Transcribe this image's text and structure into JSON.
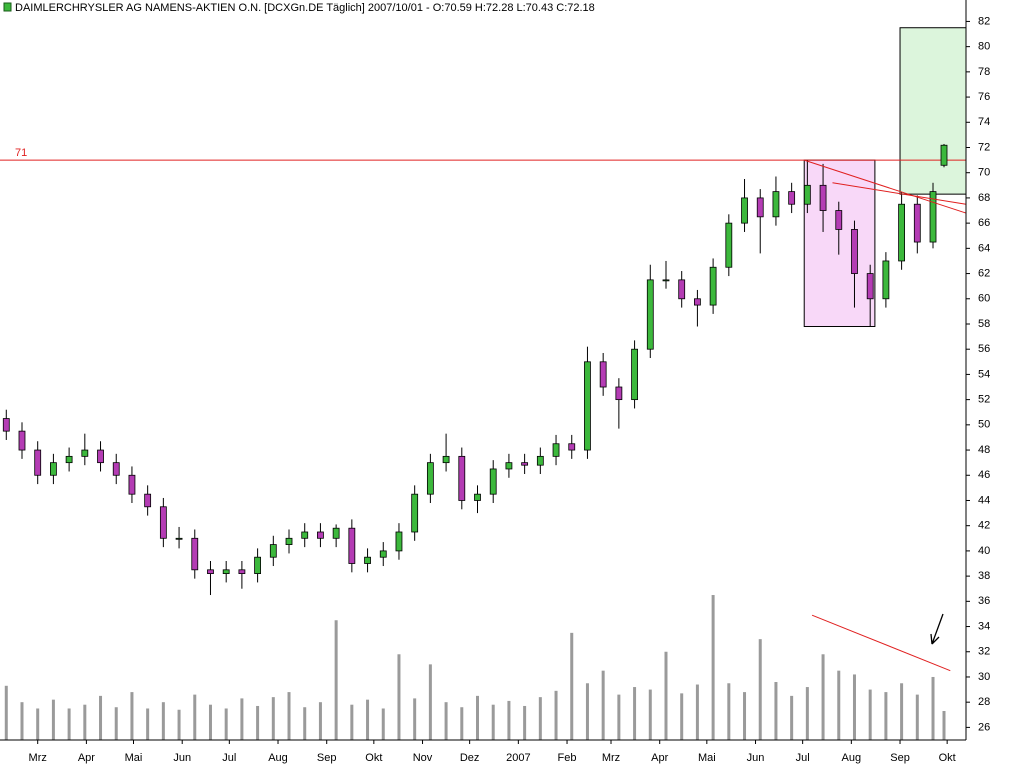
{
  "chart_data": {
    "type": "candlestick",
    "title": "DAIMLERCHRYSLER AG NAMENS-AKTIEN O.N. [DCXGn.DE  Täglich] 2007/10/01 - O:70.59 H:72.28 L:70.43 C:72.18",
    "x": [
      -20,
      -10,
      0,
      10,
      20,
      30,
      40,
      50,
      60,
      70,
      80,
      90,
      100,
      110,
      120,
      130,
      140,
      150,
      160,
      170,
      180,
      190,
      200,
      210,
      220,
      230,
      240,
      250,
      260,
      270,
      280,
      290,
      300,
      310,
      320,
      330,
      340,
      350,
      360,
      370,
      380,
      390,
      400,
      410,
      420,
      430,
      440,
      450,
      460,
      470,
      480,
      490,
      500,
      510,
      520,
      530,
      540,
      550,
      560,
      570,
      577
    ],
    "open": [
      50.5,
      49.5,
      48,
      46,
      47,
      47.5,
      48,
      47,
      46,
      44.5,
      43.5,
      41,
      41,
      38.5,
      38.2,
      38.5,
      38.2,
      39.5,
      40.5,
      41,
      41.5,
      41,
      41.8,
      39,
      39.5,
      40,
      41.5,
      44.5,
      47,
      47.5,
      44,
      44.5,
      46.5,
      47,
      46.8,
      47.5,
      48.5,
      48,
      55,
      53,
      52,
      56,
      61.5,
      61.5,
      60,
      59.5,
      62.5,
      66,
      68,
      66.5,
      68.5,
      67.5,
      69,
      67,
      65.5,
      62,
      60,
      63,
      67.5,
      64.5,
      70.59
    ],
    "high": [
      51.2,
      50.2,
      48.7,
      47.7,
      48.2,
      49.3,
      48.7,
      47.7,
      46.7,
      45.2,
      44.2,
      41.9,
      41.7,
      39.2,
      39.2,
      39.2,
      40.2,
      41.2,
      41.7,
      42.2,
      42.2,
      42.1,
      42.5,
      40.2,
      40.7,
      42.2,
      45.2,
      47.7,
      49.3,
      48.2,
      45.2,
      47.2,
      47.7,
      47.7,
      48.2,
      49.2,
      49.2,
      56.2,
      55.7,
      53.7,
      56.7,
      62.7,
      63,
      62.2,
      60.7,
      63.2,
      66.7,
      69.5,
      68.7,
      69.7,
      69.2,
      71,
      70.7,
      67.7,
      66.2,
      62.7,
      63.7,
      68.5,
      68.2,
      69.2,
      72.28
    ],
    "low": [
      48.8,
      47.3,
      45.3,
      45.3,
      46.3,
      46.8,
      46.3,
      45.3,
      43.8,
      42.8,
      40.3,
      40.2,
      37.8,
      36.5,
      37.5,
      37,
      37.5,
      38.8,
      39.8,
      40.3,
      40.3,
      40.3,
      38.3,
      38.3,
      38.8,
      39.3,
      40.8,
      43.8,
      46.3,
      43.3,
      43,
      43.8,
      45.8,
      46.1,
      46.1,
      46.8,
      47.3,
      47.3,
      52.3,
      49.7,
      51.3,
      55.3,
      60.8,
      59.3,
      57.8,
      58.8,
      61.8,
      65.3,
      63.6,
      65.8,
      66.8,
      66.8,
      65.3,
      63.5,
      59.3,
      57.8,
      59.3,
      62.3,
      63.6,
      64,
      70.43
    ],
    "close": [
      49.5,
      48,
      46,
      47,
      47.5,
      48,
      47,
      46,
      44.5,
      43.5,
      41,
      41,
      38.5,
      38.2,
      38.5,
      38.2,
      39.5,
      40.5,
      41,
      41.5,
      41,
      41.8,
      39,
      39.5,
      40,
      41.5,
      44.5,
      47,
      47.5,
      44,
      44.5,
      46.5,
      47,
      46.8,
      47.5,
      48.5,
      48,
      55,
      53,
      52,
      56,
      61.5,
      61.5,
      60,
      59.5,
      62.5,
      66,
      68,
      66.5,
      68.5,
      67.5,
      69,
      67,
      65.5,
      62,
      60,
      63,
      67.5,
      64.5,
      68.5,
      72.18
    ],
    "volume": [
      29.3,
      28,
      27.5,
      28.2,
      27.5,
      27.8,
      28.5,
      27.6,
      28.8,
      27.5,
      28,
      27.4,
      28.6,
      27.8,
      27.5,
      28.3,
      27.7,
      28.4,
      28.8,
      27.6,
      28,
      34.5,
      27.8,
      28.2,
      27.5,
      31.8,
      28.3,
      31,
      28,
      27.6,
      28.5,
      27.8,
      28.1,
      27.7,
      28.4,
      28.9,
      33.5,
      29.5,
      30.5,
      28.6,
      29.2,
      29,
      32,
      28.7,
      29.4,
      36.5,
      29.5,
      28.8,
      33,
      29.6,
      28.5,
      29.2,
      31.8,
      30.5,
      30.2,
      29,
      28.8,
      29.5,
      28.6,
      30,
      27.3
    ],
    "up_color": "#3cb83c",
    "down_color": "#b43cb4",
    "volume_color": "#9a9a9a",
    "xlim": [
      -24,
      591
    ],
    "xticks": [
      {
        "value": 0,
        "label": "Mrz"
      },
      {
        "value": 31,
        "label": "Apr"
      },
      {
        "value": 61,
        "label": "Mai"
      },
      {
        "value": 92,
        "label": "Jun"
      },
      {
        "value": 122,
        "label": "Jul"
      },
      {
        "value": 153,
        "label": "Aug"
      },
      {
        "value": 184,
        "label": "Sep"
      },
      {
        "value": 214,
        "label": "Okt"
      },
      {
        "value": 245,
        "label": "Nov"
      },
      {
        "value": 275,
        "label": "Dez"
      },
      {
        "value": 306,
        "label": "2007"
      },
      {
        "value": 337,
        "label": "Feb"
      },
      {
        "value": 365,
        "label": "Mrz"
      },
      {
        "value": 396,
        "label": "Apr"
      },
      {
        "value": 426,
        "label": "Mai"
      },
      {
        "value": 457,
        "label": "Jun"
      },
      {
        "value": 487,
        "label": "Jul"
      },
      {
        "value": 518,
        "label": "Aug"
      },
      {
        "value": 549,
        "label": "Sep"
      },
      {
        "value": 579,
        "label": "Okt"
      }
    ],
    "ylim": [
      25,
      83.7
    ],
    "yticks": [
      26,
      28,
      30,
      32,
      34,
      36,
      38,
      40,
      42,
      44,
      46,
      48,
      50,
      52,
      54,
      56,
      58,
      60,
      62,
      64,
      66,
      68,
      70,
      72,
      74,
      76,
      78,
      80,
      82
    ],
    "hline": 71,
    "hline_color": "#e02020",
    "boxes": [
      {
        "x": [
          488,
          533
        ],
        "y": [
          57.8,
          71
        ],
        "color": "#f8d8f8"
      },
      {
        "x": [
          549,
          591
        ],
        "y": [
          68.3,
          81.5
        ],
        "color": "#dcf5dc"
      }
    ],
    "lines": [
      {
        "x": [
          488,
          591
        ],
        "y": [
          71,
          66.8
        ],
        "color": "#e02020"
      },
      {
        "x": [
          506,
          591
        ],
        "y": [
          69.2,
          67.5
        ],
        "color": "#e02020"
      },
      {
        "x": [
          493,
          581
        ],
        "y": [
          34.9,
          30.5
        ],
        "color": "#e02020"
      }
    ]
  }
}
